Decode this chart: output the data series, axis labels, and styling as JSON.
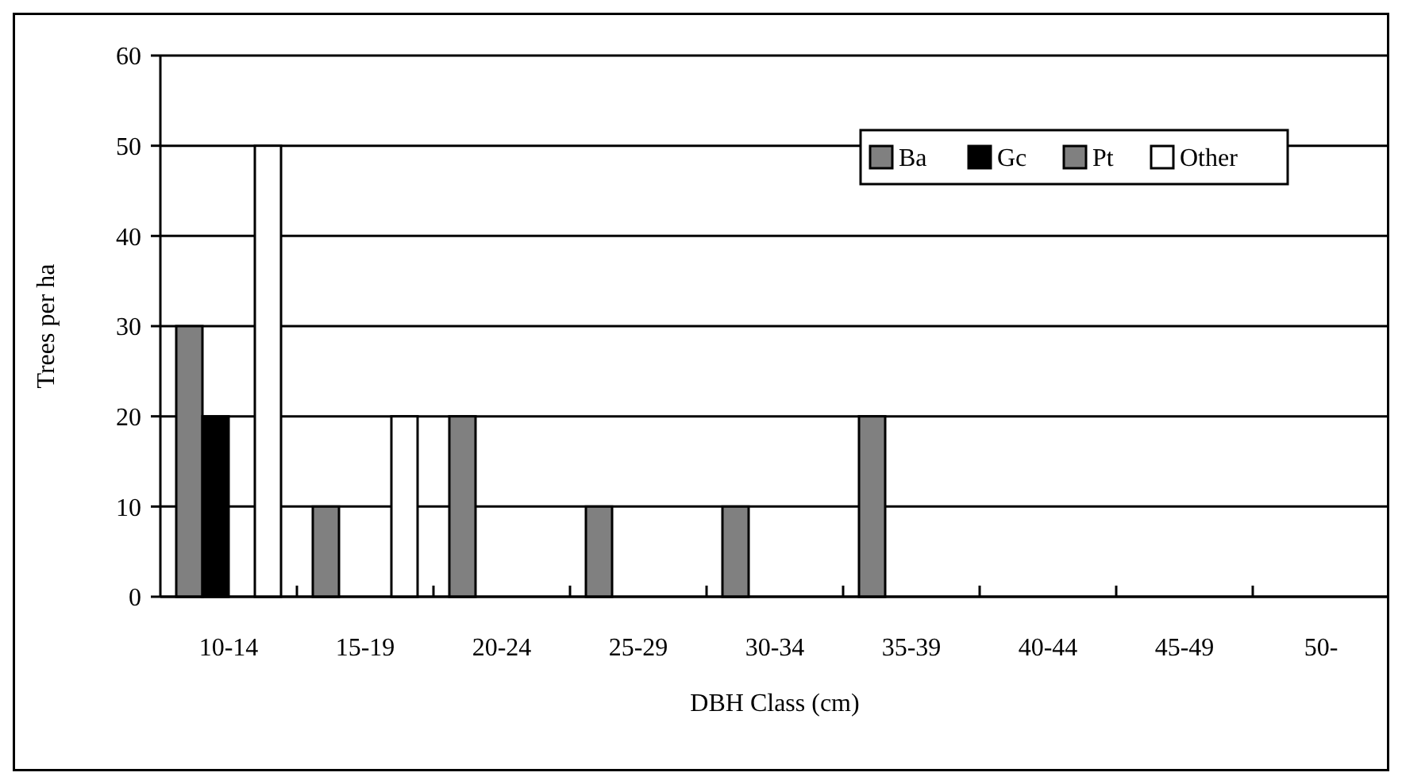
{
  "chart_data": {
    "type": "bar",
    "xlabel": "DBH Class (cm)",
    "ylabel": "Trees per ha",
    "categories": [
      "10-14",
      "15-19",
      "20-24",
      "25-29",
      "30-34",
      "35-39",
      "40-44",
      "45-49",
      "50-"
    ],
    "series": [
      {
        "name": "Ba",
        "color": "#808080",
        "values": [
          30,
          10,
          20,
          10,
          10,
          20,
          0,
          0,
          0
        ]
      },
      {
        "name": "Gc",
        "color": "#000000",
        "values": [
          20,
          0,
          0,
          0,
          0,
          0,
          0,
          0,
          0
        ]
      },
      {
        "name": "Pt",
        "color": "#808080",
        "values": [
          0,
          0,
          0,
          0,
          0,
          0,
          0,
          0,
          0
        ]
      },
      {
        "name": "Other",
        "color": "#ffffff",
        "values": [
          50,
          20,
          0,
          0,
          0,
          0,
          0,
          0,
          0
        ]
      }
    ],
    "ylim": [
      0,
      60
    ],
    "yticks": [
      0,
      10,
      20,
      30,
      40,
      50,
      60
    ],
    "grid": "y",
    "legend": "top right"
  }
}
